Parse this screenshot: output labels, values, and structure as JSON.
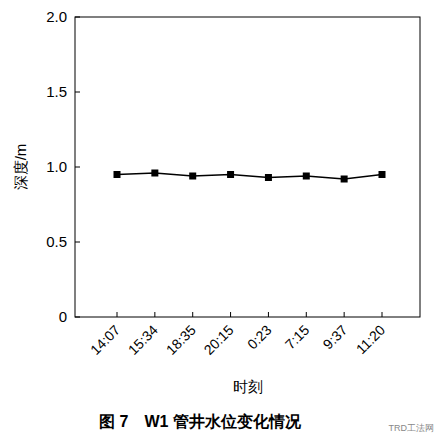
{
  "chart_data": {
    "type": "line",
    "title": "图 7　W1 管井水位变化情况",
    "x_label": "时刻",
    "y_label": "深度/m",
    "categories": [
      "14:07",
      "15:34",
      "18:35",
      "20:15",
      "0:23",
      "7:15",
      "9:37",
      "11:20"
    ],
    "series": [
      {
        "name": "W1",
        "color": "#000000",
        "marker": "square",
        "line_style": "solid",
        "values": [
          0.95,
          0.96,
          0.94,
          0.95,
          0.93,
          0.94,
          0.92,
          0.95
        ]
      }
    ],
    "ylim": [
      0,
      2.0
    ],
    "yticks": [
      0,
      0.5,
      {
        "value": 1.0,
        "label": "1.0"
      },
      1.5,
      {
        "value": 2.0,
        "label": "2.0"
      }
    ],
    "grid": false,
    "annotations": [
      "TRD工法网"
    ]
  }
}
